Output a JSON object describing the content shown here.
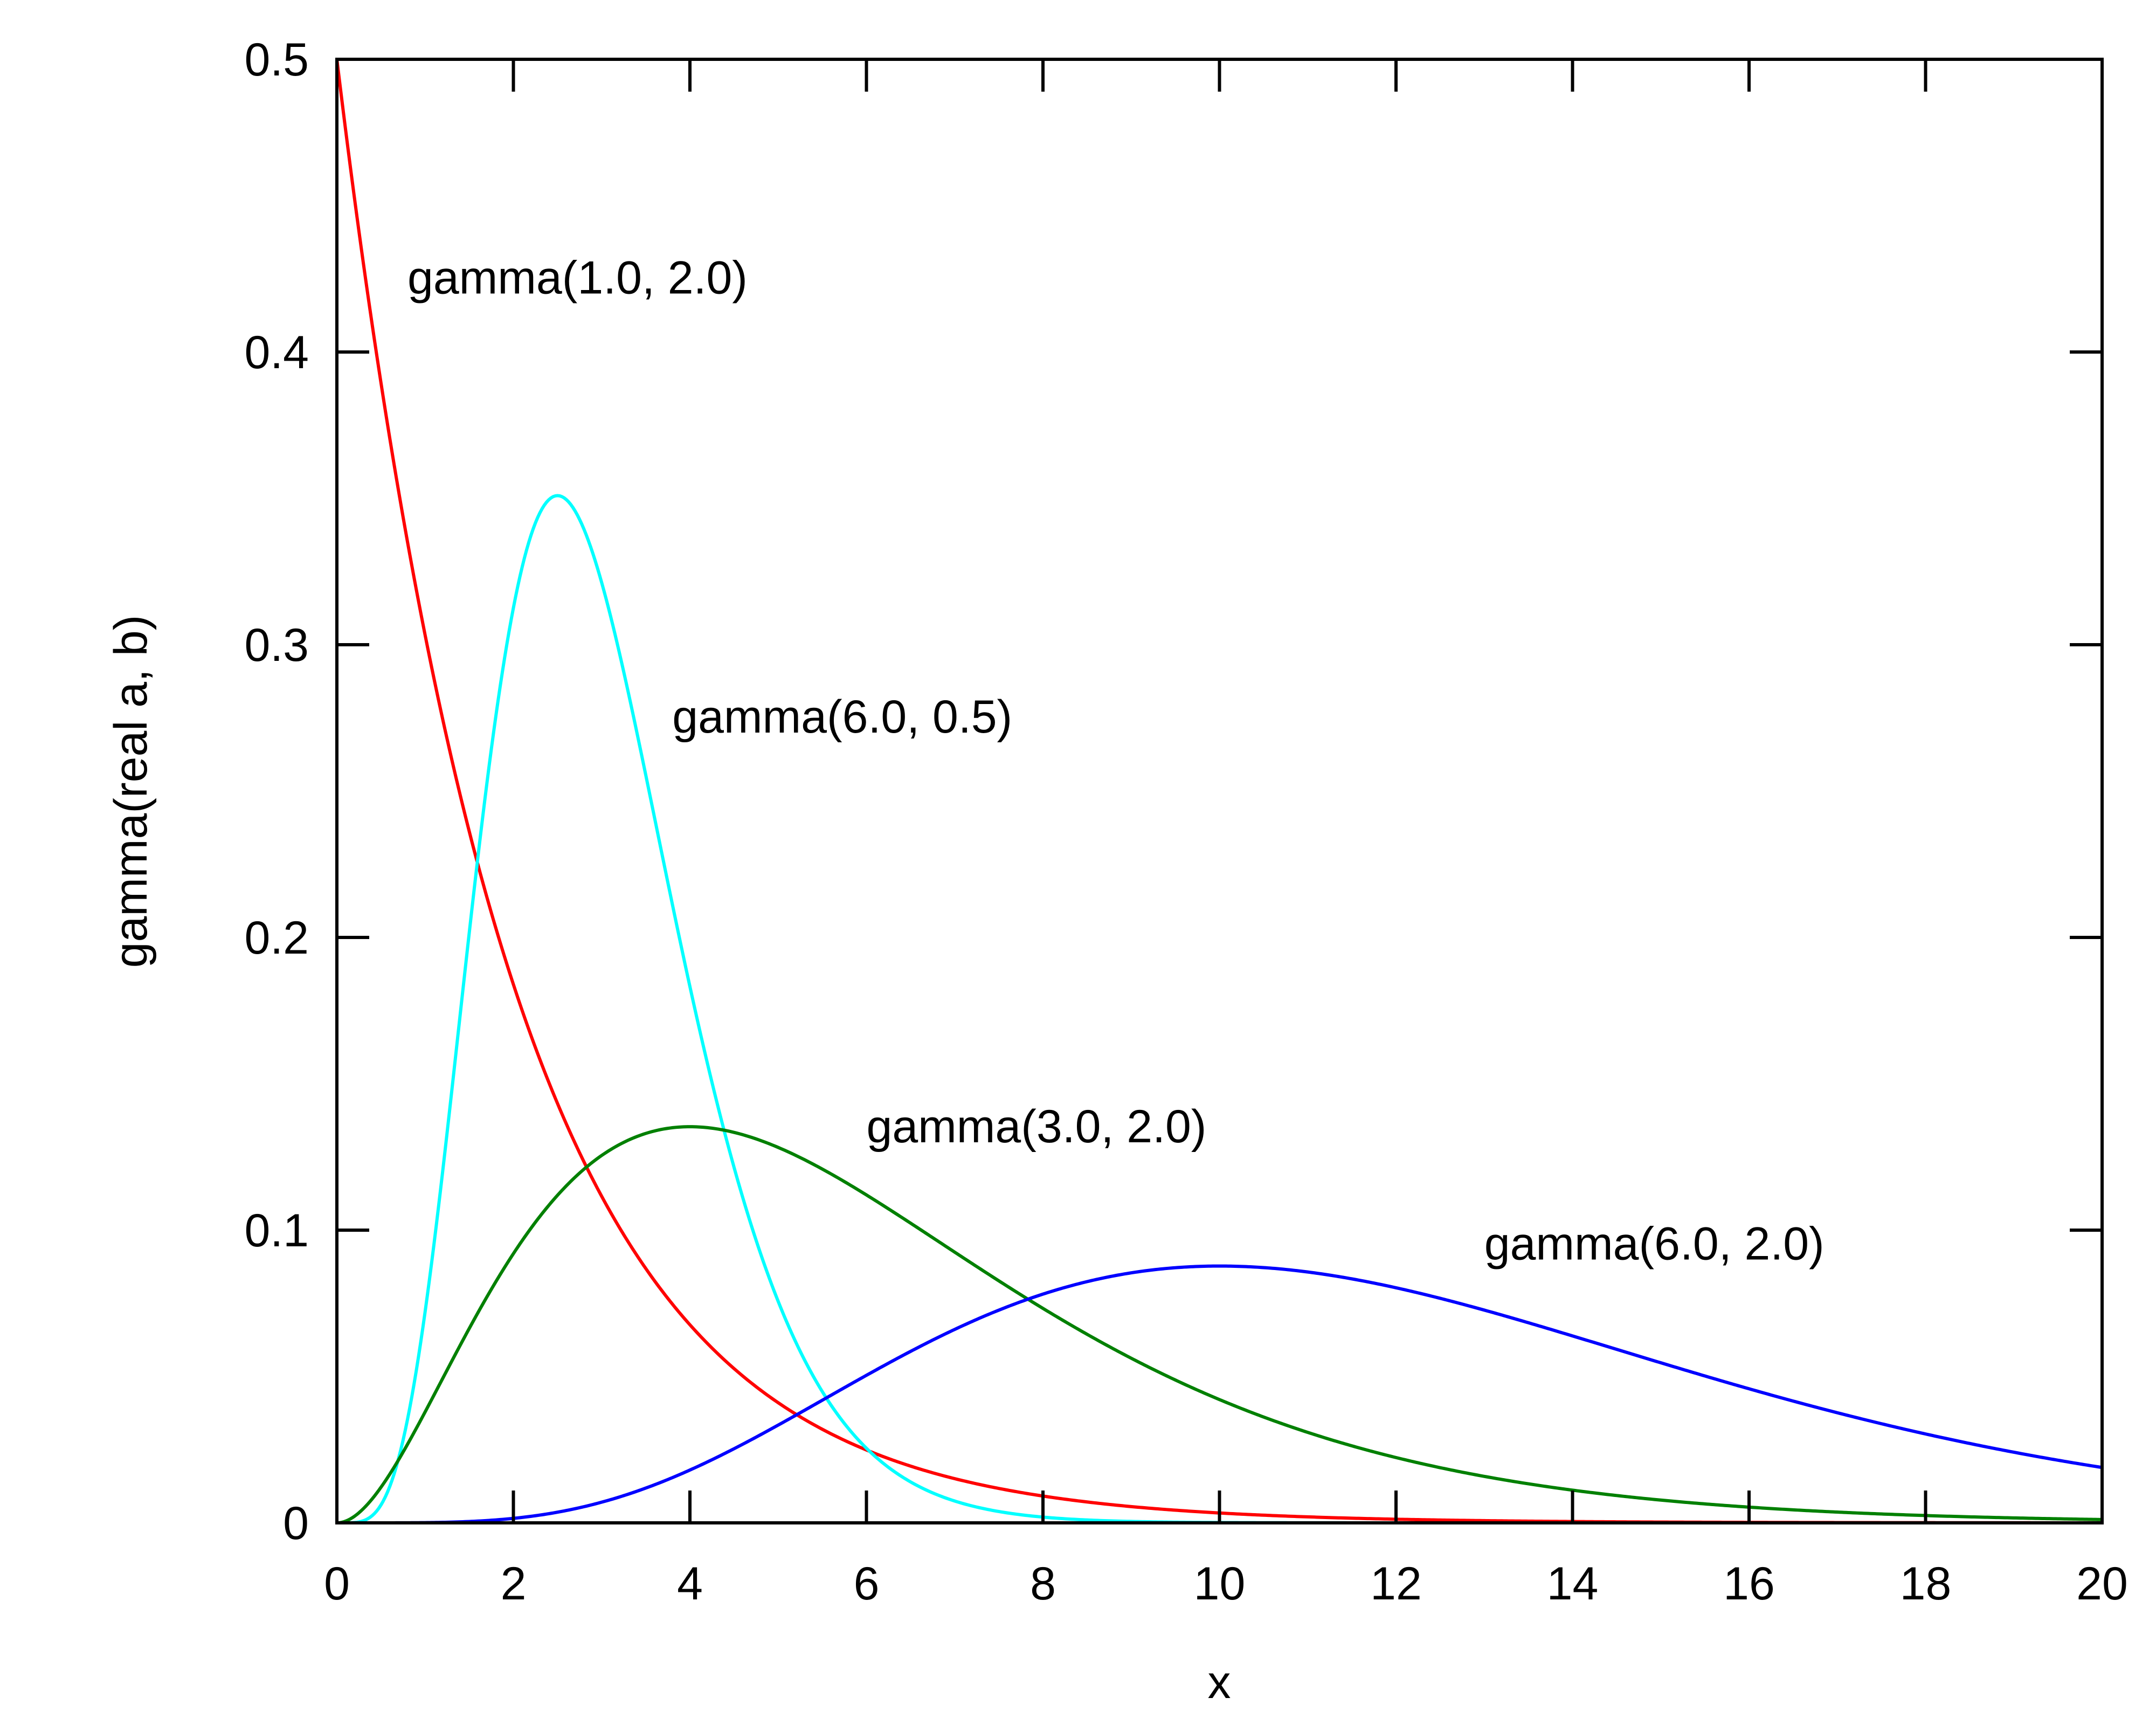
{
  "chart_data": {
    "type": "line",
    "title": "",
    "xlabel": "x",
    "ylabel": "gamma(real a, b)",
    "xlim": [
      0,
      20
    ],
    "ylim": [
      0,
      0.5
    ],
    "x_ticks": [
      "0",
      "2",
      "4",
      "6",
      "8",
      "10",
      "12",
      "14",
      "16",
      "18",
      "20"
    ],
    "y_ticks": [
      "0",
      "0.1",
      "0.2",
      "0.3",
      "0.4",
      "0.5"
    ],
    "grid": false,
    "legend": "none",
    "series": [
      {
        "name": "gamma(1.0, 2.0)",
        "a": 1.0,
        "b": 2.0,
        "color": "#ff0000",
        "label_anchor": [
          0.8,
          0.42
        ],
        "x": [
          0,
          1,
          2,
          3,
          4,
          5,
          6,
          8,
          10,
          12,
          14,
          16,
          18,
          20
        ],
        "values": [
          0.5,
          0.3033,
          0.1839,
          0.1116,
          0.0677,
          0.041,
          0.0249,
          0.0092,
          0.0034,
          0.0012,
          0.0005,
          0.0002,
          0.0001,
          0.0
        ]
      },
      {
        "name": "gamma(6.0, 0.5)",
        "a": 6.0,
        "b": 0.5,
        "color": "#00ffff",
        "label_anchor": [
          3.8,
          0.27
        ],
        "x": [
          0,
          0.5,
          1,
          1.5,
          2,
          2.5,
          3,
          3.5,
          4,
          4.5,
          5,
          6,
          7,
          8,
          10
        ],
        "values": [
          0.0,
          0.0011,
          0.0361,
          0.1339,
          0.2605,
          0.3508,
          0.3569,
          0.3001,
          0.2167,
          0.1382,
          0.0797,
          0.0207,
          0.0044,
          0.0008,
          0.0
        ]
      },
      {
        "name": "gamma(3.0, 2.0)",
        "a": 3.0,
        "b": 2.0,
        "color": "#008000",
        "label_anchor": [
          6.0,
          0.13
        ],
        "x": [
          0,
          1,
          2,
          3,
          4,
          5,
          6,
          8,
          10,
          12,
          14,
          16,
          18,
          20
        ],
        "values": [
          0.0,
          0.0758,
          0.1226,
          0.1255,
          0.1353,
          0.1283,
          0.112,
          0.0733,
          0.0421,
          0.0223,
          0.0111,
          0.0054,
          0.0025,
          0.0011
        ]
      },
      {
        "name": "gamma(6.0, 2.0)",
        "a": 6.0,
        "b": 2.0,
        "color": "#0000ff",
        "label_anchor": [
          13.0,
          0.09
        ],
        "x": [
          0,
          2,
          4,
          6,
          8,
          10,
          12,
          14,
          16,
          18,
          20
        ],
        "values": [
          0.0,
          0.0031,
          0.0361,
          0.0504,
          0.0782,
          0.0877,
          0.0803,
          0.0636,
          0.0458,
          0.0308,
          0.0189
        ]
      }
    ]
  }
}
